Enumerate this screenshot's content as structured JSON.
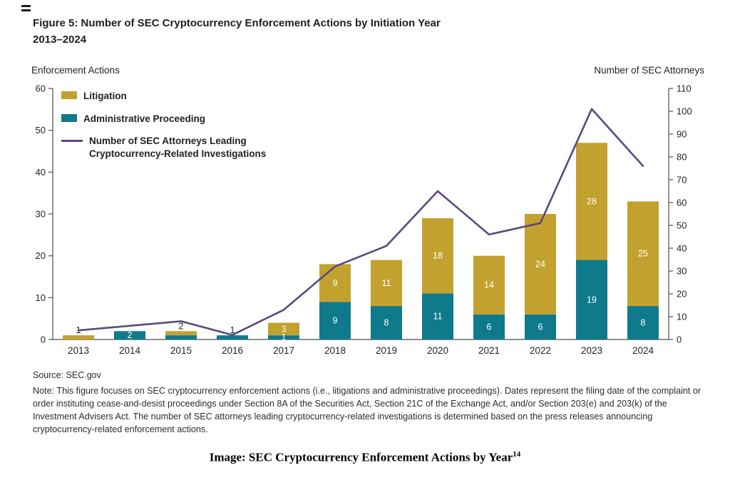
{
  "figure": {
    "title_line1": "Figure 5: Number of SEC Cryptocurrency Enforcement Actions by Initiation Year",
    "title_line2": "2013–2024",
    "source": "Source: SEC.gov",
    "note": "Note: This figure focuses on SEC cryptocurrency enforcement actions (i.e., litigations and administrative proceedings). Dates represent the filing date of the complaint or order instituting cease-and-desist proceedings under Section 8A of the Securities Act, Section 21C of the Exchange Act, and/or Section 203(e) and 203(k) of the Investment Advisers Act. The number of SEC attorneys leading cryptocurrency-related investigations is determined based on the press releases announcing cryptocurrency-related enforcement actions.",
    "caption_text": "Image: SEC Cryptocurrency Enforcement Actions by Year",
    "caption_superscript": "14"
  },
  "legend": {
    "line_item_line1": "Number of SEC Attorneys Leading",
    "line_item_line2": "Cryptocurrency-Related Investigations"
  },
  "chart_data": {
    "type": "bar",
    "subtype": "stacked-bar-with-line",
    "title": "Figure 5: Number of SEC Cryptocurrency Enforcement Actions by Initiation Year 2013–2024",
    "categories": [
      "2013",
      "2014",
      "2015",
      "2016",
      "2017",
      "2018",
      "2019",
      "2020",
      "2021",
      "2022",
      "2023",
      "2024"
    ],
    "series": [
      {
        "name": "Litigation",
        "type": "bar",
        "stack": "actions",
        "color": "#C3A12F",
        "values": [
          1,
          0,
          1,
          0,
          3,
          9,
          11,
          18,
          14,
          24,
          28,
          25
        ]
      },
      {
        "name": "Administrative Proceeding",
        "type": "bar",
        "stack": "actions",
        "color": "#0E7A8B",
        "values": [
          0,
          2,
          1,
          1,
          1,
          9,
          8,
          11,
          6,
          6,
          19,
          8
        ]
      },
      {
        "name": "Number of SEC Attorneys Leading Cryptocurrency-Related Investigations",
        "type": "line",
        "axis": "right",
        "color": "#5A4A7D",
        "values": [
          4,
          6,
          8,
          2,
          13,
          32,
          41,
          65,
          46,
          51,
          101,
          76
        ]
      }
    ],
    "bar_totals": [
      1,
      2,
      2,
      1,
      4,
      18,
      19,
      29,
      20,
      30,
      47,
      33
    ],
    "bar_labels": [
      {
        "i": 0,
        "text": "1",
        "pos": "above"
      },
      {
        "i": 1,
        "text": "2",
        "pos": "admin"
      },
      {
        "i": 2,
        "text": "2",
        "pos": "above"
      },
      {
        "i": 3,
        "text": "1",
        "pos": "above"
      },
      {
        "i": 4,
        "text": "3",
        "pos": "lit"
      },
      {
        "i": 4,
        "text": "1",
        "pos": "admin"
      },
      {
        "i": 5,
        "text": "9",
        "pos": "lit"
      },
      {
        "i": 5,
        "text": "9",
        "pos": "admin"
      },
      {
        "i": 6,
        "text": "11",
        "pos": "lit"
      },
      {
        "i": 6,
        "text": "8",
        "pos": "admin"
      },
      {
        "i": 7,
        "text": "18",
        "pos": "lit"
      },
      {
        "i": 7,
        "text": "11",
        "pos": "admin"
      },
      {
        "i": 8,
        "text": "14",
        "pos": "lit"
      },
      {
        "i": 8,
        "text": "6",
        "pos": "admin"
      },
      {
        "i": 9,
        "text": "24",
        "pos": "lit"
      },
      {
        "i": 9,
        "text": "6",
        "pos": "admin"
      },
      {
        "i": 10,
        "text": "28",
        "pos": "lit"
      },
      {
        "i": 10,
        "text": "19",
        "pos": "admin"
      },
      {
        "i": 11,
        "text": "25",
        "pos": "lit"
      },
      {
        "i": 11,
        "text": "8",
        "pos": "admin"
      }
    ],
    "left_axis": {
      "title": "Enforcement Actions",
      "min": 0,
      "max": 60,
      "step": 10
    },
    "right_axis": {
      "title": "Number of SEC Attorneys",
      "min": 0,
      "max": 110,
      "step": 10
    },
    "grid": false,
    "legend_position": "top-left-inside"
  }
}
